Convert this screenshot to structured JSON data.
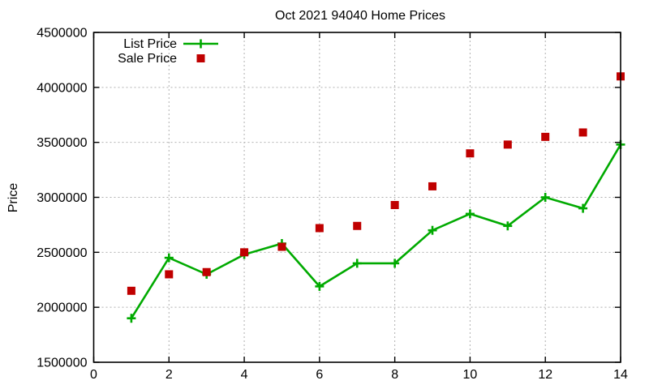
{
  "chart_data": {
    "type": "line",
    "title": "Oct 2021 94040 Home Prices",
    "xlabel": "",
    "ylabel": "Price",
    "x": [
      1,
      2,
      3,
      4,
      5,
      6,
      7,
      8,
      9,
      10,
      11,
      12,
      13,
      14
    ],
    "series": [
      {
        "name": "List Price",
        "style": "line-plus",
        "color": "#00aa00",
        "values": [
          1900000,
          2450000,
          2300000,
          2480000,
          2580000,
          2190000,
          2400000,
          2400000,
          2700000,
          2850000,
          2740000,
          3000000,
          2900000,
          3480000
        ]
      },
      {
        "name": "Sale Price",
        "style": "squares",
        "color": "#c00000",
        "values": [
          2150000,
          2300000,
          2320000,
          2500000,
          2550000,
          2720000,
          2740000,
          2930000,
          3100000,
          3400000,
          3480000,
          3550000,
          3590000,
          4100000
        ]
      }
    ],
    "xlim": [
      0,
      14
    ],
    "ylim": [
      1500000,
      4500000
    ],
    "xticks": [
      0,
      2,
      4,
      6,
      8,
      10,
      12,
      14
    ],
    "yticks": [
      1500000,
      2000000,
      2500000,
      3000000,
      3500000,
      4000000,
      4500000
    ],
    "grid": true,
    "legend_position": "top-left-inside",
    "background": "#ffffff",
    "grid_color": "#b0b0b0",
    "axis_color": "#000000"
  }
}
